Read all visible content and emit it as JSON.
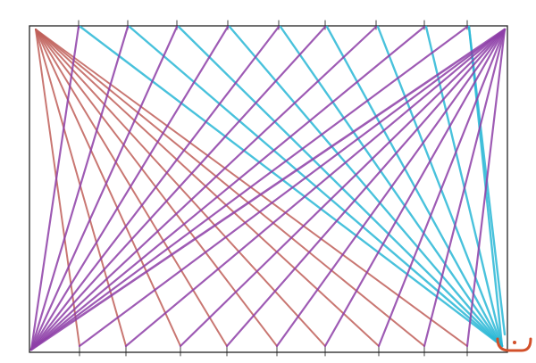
{
  "artwork": {
    "kind": "hand-drawn string-art line pattern",
    "colors": {
      "frame": "#222222",
      "red_fan": "#c0605a",
      "purple_fan": "#8e3fa8",
      "cyan_fan": "#2ab8d6",
      "signature_mark": "#d2502a"
    },
    "tick_count_per_edge": 9
  }
}
